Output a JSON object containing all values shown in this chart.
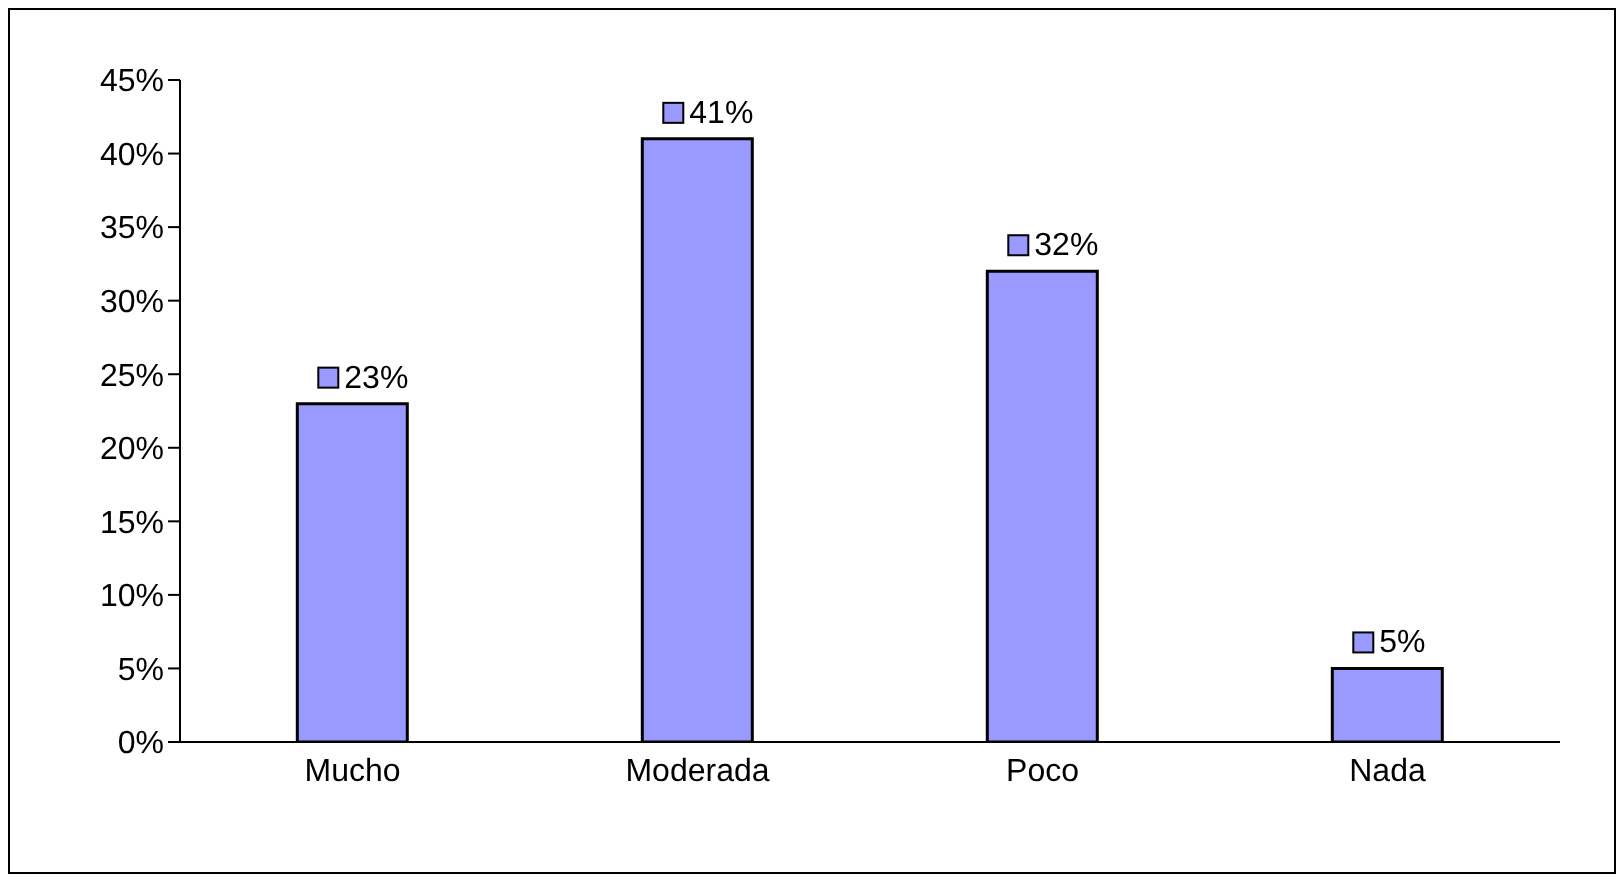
{
  "chart_data": {
    "type": "bar",
    "categories": [
      "Mucho",
      "Moderada",
      "Poco",
      "Nada"
    ],
    "values": [
      23,
      41,
      32,
      5
    ],
    "color": "#9999ff",
    "value_labels": [
      "23%",
      "41%",
      "32%",
      "5%"
    ],
    "ylim": [
      0,
      45
    ],
    "yticks": [
      {
        "value": 0,
        "label": "0%"
      },
      {
        "value": 5,
        "label": "5%"
      },
      {
        "value": 10,
        "label": "10%"
      },
      {
        "value": 15,
        "label": "15%"
      },
      {
        "value": 20,
        "label": "20%"
      },
      {
        "value": 25,
        "label": "25%"
      },
      {
        "value": 30,
        "label": "30%"
      },
      {
        "value": 35,
        "label": "35%"
      },
      {
        "value": 40,
        "label": "40%"
      },
      {
        "value": 45,
        "label": "45%"
      }
    ],
    "grid": false,
    "legend": false
  }
}
